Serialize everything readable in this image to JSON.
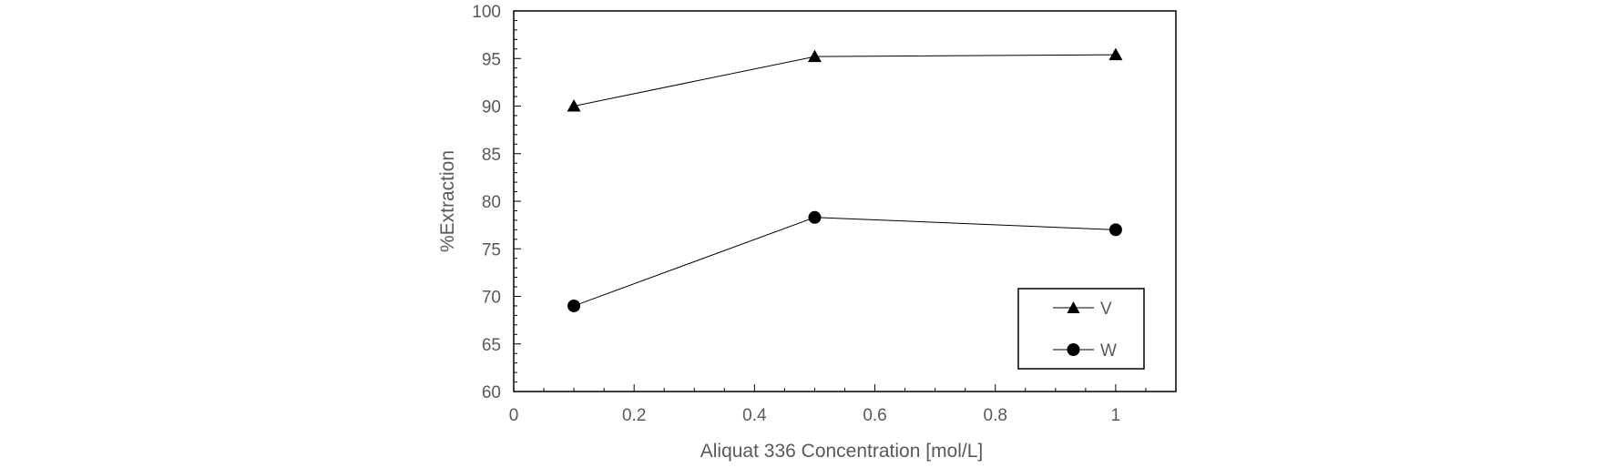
{
  "chart_data": {
    "type": "line",
    "title": "",
    "xlabel": "Aliquat 336 Concentration [mol/L]",
    "ylabel": "%Extraction",
    "xlim": [
      0,
      1.1
    ],
    "ylim": [
      60,
      100
    ],
    "xticks": [
      0,
      0.2,
      0.4,
      0.6,
      0.8,
      1
    ],
    "xtick_labels": [
      "0",
      "0.2",
      "0.4",
      "0.6",
      "0.8",
      "1"
    ],
    "yticks": [
      60,
      65,
      70,
      75,
      80,
      85,
      90,
      95,
      100
    ],
    "ytick_labels": [
      "60",
      "65",
      "70",
      "75",
      "80",
      "85",
      "90",
      "95",
      "100"
    ],
    "grid": false,
    "legend_position": "bottom-right",
    "series": [
      {
        "name": "V",
        "marker": "triangle",
        "color": "#000000",
        "x": [
          0.1,
          0.5,
          1
        ],
        "y": [
          90.0,
          95.2,
          95.4
        ]
      },
      {
        "name": "W",
        "marker": "circle",
        "color": "#000000",
        "x": [
          0.1,
          0.5,
          1
        ],
        "y": [
          69.0,
          78.3,
          77.0
        ]
      }
    ]
  }
}
